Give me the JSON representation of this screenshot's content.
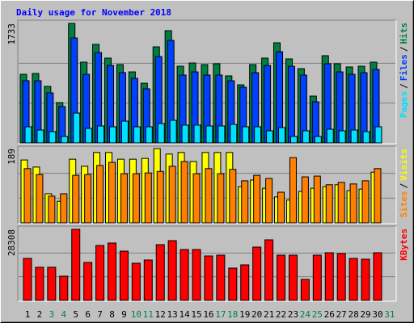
{
  "chart_data": [
    {
      "type": "bar",
      "title": "Daily usage for November 2018",
      "legend_separator": "/",
      "ylim": [
        0,
        1733
      ],
      "yticks": [
        1733
      ],
      "series": [
        {
          "name": "Hits",
          "color": "#008040",
          "values": [
            995,
            1007,
            820,
            585,
            1733,
            1171,
            1429,
            1230,
            1136,
            1030,
            866,
            1393,
            1628,
            1112,
            1159,
            1136,
            1148,
            972,
            843,
            1136,
            1230,
            1452,
            1218,
            1077,
            679,
            1265,
            1148,
            1101,
            1112,
            1171,
            null
          ]
        },
        {
          "name": "Files",
          "color": "#0040ff",
          "values": [
            902,
            902,
            726,
            527,
            1522,
            995,
            1311,
            1124,
            1019,
            937,
            785,
            1253,
            1487,
            984,
            1030,
            984,
            984,
            902,
            808,
            1019,
            1124,
            1323,
            1112,
            984,
            597,
            1148,
            1030,
            995,
            1019,
            1066,
            null
          ]
        },
        {
          "name": "Pages",
          "color": "#00e0ff",
          "values": [
            234,
            187,
            164,
            94,
            433,
            211,
            246,
            234,
            316,
            234,
            234,
            281,
            328,
            258,
            258,
            246,
            246,
            269,
            234,
            234,
            176,
            222,
            94,
            176,
            94,
            199,
            176,
            187,
            164,
            234,
            null
          ]
        }
      ]
    },
    {
      "type": "bar",
      "legend_separator": "/",
      "ylim": [
        0,
        189
      ],
      "yticks": [
        189
      ],
      "series": [
        {
          "name": "Visits",
          "color": "#ffff00",
          "values": [
            160,
            142,
            74,
            55,
            162,
            144,
            179,
            179,
            162,
            162,
            164,
            189,
            175,
            179,
            156,
            179,
            179,
            179,
            92,
            109,
            88,
            66,
            58,
            80,
            88,
            92,
            97,
            82,
            86,
            129,
            null
          ]
        },
        {
          "name": "Sites",
          "color": "#ff8000",
          "values": [
            138,
            123,
            68,
            74,
            121,
            123,
            146,
            154,
            125,
            125,
            127,
            131,
            144,
            156,
            125,
            138,
            125,
            136,
            107,
            121,
            113,
            78,
            166,
            117,
            119,
            97,
            103,
            99,
            107,
            138,
            null
          ]
        }
      ]
    },
    {
      "type": "bar",
      "ylim": [
        0,
        28308
      ],
      "yticks": [
        28308
      ],
      "categories": [
        "1",
        "2",
        "3",
        "4",
        "5",
        "6",
        "7",
        "8",
        "9",
        "10",
        "11",
        "12",
        "13",
        "14",
        "15",
        "16",
        "17",
        "18",
        "19",
        "20",
        "21",
        "22",
        "23",
        "24",
        "25",
        "26",
        "27",
        "28",
        "29",
        "30",
        "31"
      ],
      "category_colors": [
        "#000000",
        "#000000",
        "#008040",
        "#008040",
        "#000000",
        "#000000",
        "#000000",
        "#000000",
        "#000000",
        "#008040",
        "#008040",
        "#000000",
        "#000000",
        "#000000",
        "#000000",
        "#000000",
        "#008040",
        "#008040",
        "#000000",
        "#000000",
        "#000000",
        "#000000",
        "#000000",
        "#008040",
        "#008040",
        "#000000",
        "#000000",
        "#000000",
        "#000000",
        "#000000",
        "#008040"
      ],
      "series": [
        {
          "name": "KBytes",
          "color": "#ff0000",
          "values": [
            16728,
            13190,
            13190,
            9651,
            28308,
            15120,
            21876,
            22841,
            19624,
            14798,
            16085,
            22197,
            23806,
            20268,
            20268,
            17694,
            18015,
            12868,
            14155,
            21232,
            24128,
            18015,
            18015,
            8364,
            18015,
            18980,
            18659,
            16728,
            16407,
            18980,
            null
          ]
        }
      ]
    }
  ]
}
